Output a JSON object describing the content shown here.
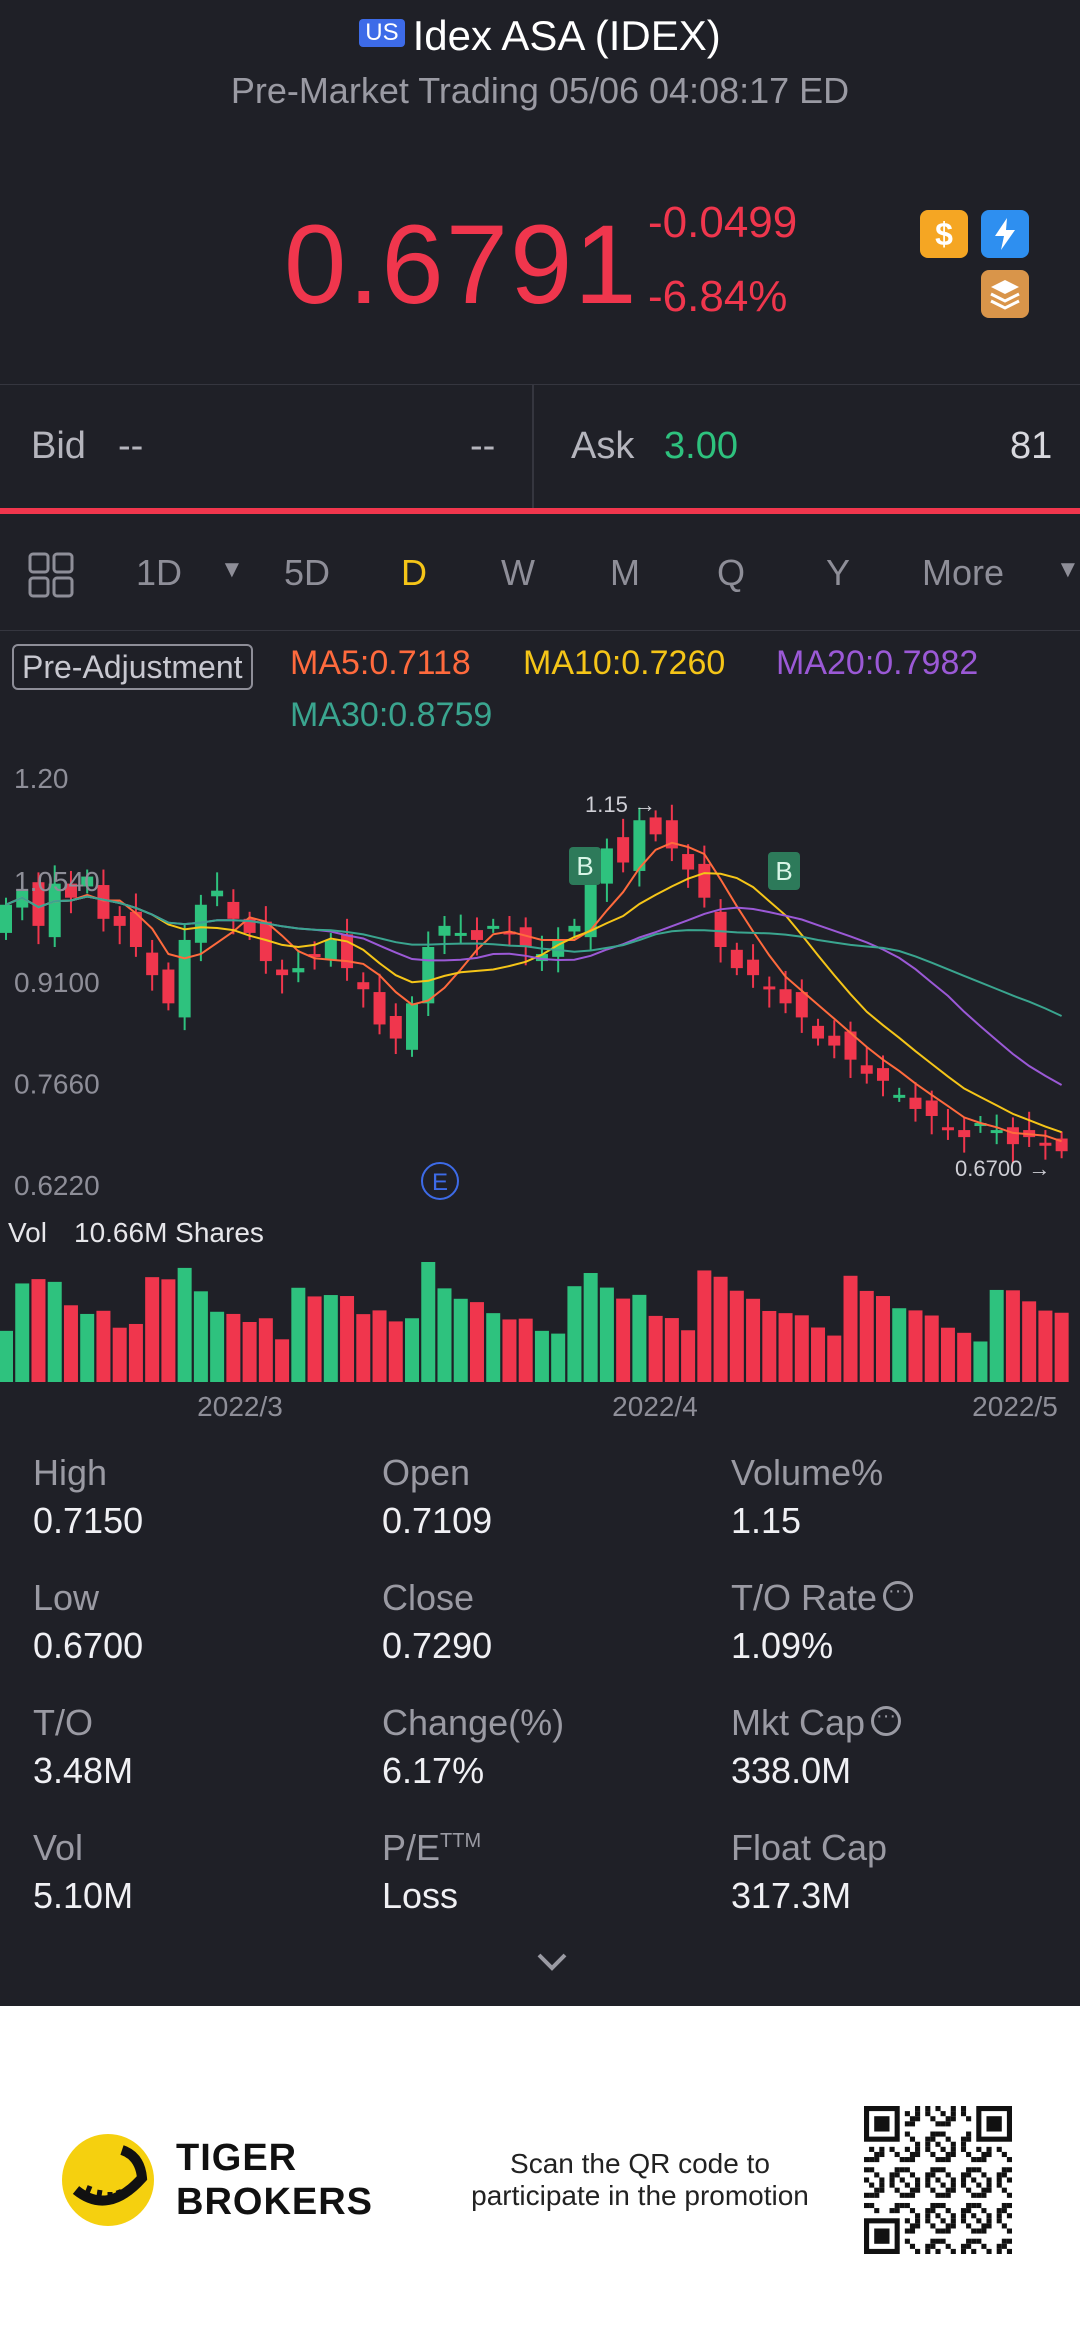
{
  "header": {
    "market_badge": "US",
    "title": "Idex ASA (IDEX)",
    "subtitle": "Pre-Market Trading 05/06 04:08:17 ED",
    "price": "0.6791",
    "change": "-0.0499",
    "change_pct": "-6.84%",
    "icons": [
      "dollar-icon",
      "lightning-icon",
      "layers-icon"
    ]
  },
  "quote": {
    "bid_label": "Bid",
    "bid_price": "--",
    "bid_size": "--",
    "ask_label": "Ask",
    "ask_price": "3.00",
    "ask_size": "81"
  },
  "periods": {
    "items": [
      "1D",
      "5D",
      "D",
      "W",
      "M",
      "Q",
      "Y",
      "More"
    ],
    "selected": "D"
  },
  "legend": {
    "pre_adjustment": "Pre-Adjustment",
    "ma5": "MA5:0.7118",
    "ma10": "MA10:0.7260",
    "ma20": "MA20:0.7982",
    "ma30": "MA30:0.8759"
  },
  "chart_data": {
    "type": "candlestick",
    "y_ticks": [
      "1.20",
      "1.0540",
      "0.9100",
      "0.7660",
      "0.6220"
    ],
    "x_ticks": [
      "2022/3",
      "2022/4",
      "2022/5"
    ],
    "high_marker": "1.15",
    "low_marker": "0.6700",
    "buy_marker": "B",
    "event_marker": "E",
    "volume_label": "Vol",
    "volume_value": "10.66M Shares",
    "colors": {
      "up": "#2ec27e",
      "down": "#f0364d",
      "ma5": "#ff6a3d",
      "ma10": "#f5c518",
      "ma20": "#9b59d6",
      "ma30": "#3aa58f"
    }
  },
  "stats": [
    {
      "label": "High",
      "value": "0.7150"
    },
    {
      "label": "Open",
      "value": "0.7109"
    },
    {
      "label": "Volume%",
      "value": "1.15"
    },
    {
      "label": "Low",
      "value": "0.6700"
    },
    {
      "label": "Close",
      "value": "0.7290"
    },
    {
      "label": "T/O Rate",
      "value": "1.09%"
    },
    {
      "label": "T/O",
      "value": "3.48M"
    },
    {
      "label": "Change(%)",
      "value": "6.17%"
    },
    {
      "label": "Mkt Cap",
      "value": "338.0M"
    },
    {
      "label": "Vol",
      "value": "5.10M"
    },
    {
      "label": "P/E",
      "label_sup": "TTM",
      "value": "Loss"
    },
    {
      "label": "Float Cap",
      "value": "317.3M"
    }
  ],
  "footer": {
    "brand_line1": "TIGER",
    "brand_line2": "BROKERS",
    "promo_line1": "Scan the QR code to",
    "promo_line2": "participate in the promotion"
  }
}
